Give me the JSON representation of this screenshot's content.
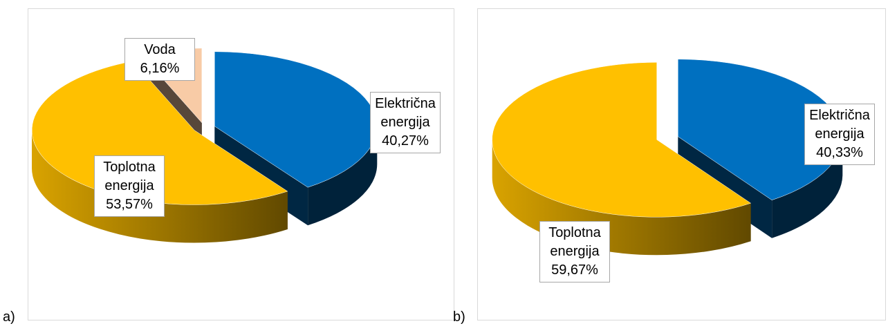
{
  "chart_data": [
    {
      "type": "pie3d",
      "panel": "a)",
      "categories": [
        "Električna energija",
        "Toplotna energija",
        "Voda"
      ],
      "values": [
        40.27,
        53.57,
        6.16
      ],
      "value_labels": [
        "40,27%",
        "53,57%",
        "6,16%"
      ],
      "colors": [
        "#0070c0",
        "#ffc000",
        "#f8cba6"
      ]
    },
    {
      "type": "pie3d",
      "panel": "b)",
      "categories": [
        "Električna energija",
        "Toplotna energija"
      ],
      "values": [
        40.33,
        59.67
      ],
      "value_labels": [
        "40,33%",
        "59,67%"
      ],
      "colors": [
        "#0070c0",
        "#ffc000"
      ]
    }
  ]
}
